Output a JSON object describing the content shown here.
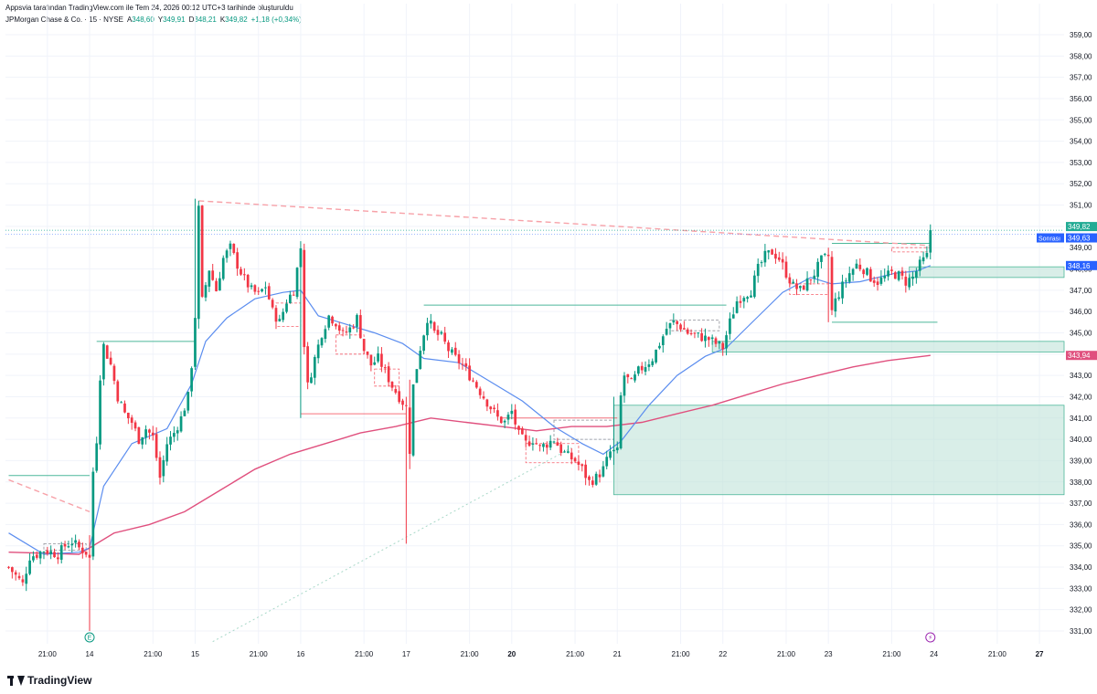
{
  "header": {
    "attribution": "Appsvia tarafından TradingView.com ile Tem 24, 2026 00:12 UTC+3 tarihinde oluşturuldu",
    "symbol": "JPMorgan Chase & Co. · 15 · NYSE",
    "open_label": "A",
    "open_value": "348,60",
    "high_label": "Y",
    "high_value": "349,91",
    "low_label": "D",
    "low_value": "348,21",
    "close_label": "K",
    "close_value": "349,82",
    "change": "+1,18 (+0,34%)"
  },
  "branding": {
    "logo_text": "TradingView"
  },
  "colors": {
    "up": "#089981",
    "down": "#f23645",
    "ma_fast": "#5b8def",
    "ma_slow": "#e0507e",
    "zone_fill": "#bfe3d8",
    "zone_line": "#4db89a",
    "grid": "#f0f3fa",
    "text": "#131722",
    "price_last": "#22ab94",
    "price_prev": "#2962ff",
    "price_ma": "#e0507e"
  },
  "chart_data": {
    "type": "candlestick",
    "title": "",
    "xlabel": "",
    "ylabel": "",
    "ylim": [
      330.4,
      359.6
    ],
    "x_span_bars": 300,
    "grid": true,
    "y_ticks": [
      "331,00",
      "332,00",
      "333,00",
      "334,00",
      "335,00",
      "336,00",
      "337,00",
      "338,00",
      "339,00",
      "340,00",
      "341,00",
      "342,00",
      "343,00",
      "344,00",
      "345,00",
      "346,00",
      "347,00",
      "348,00",
      "349,00",
      "350,00",
      "351,00",
      "352,00",
      "353,00",
      "354,00",
      "355,00",
      "356,00",
      "357,00",
      "358,00",
      "359,00"
    ],
    "y_tick_values": [
      331,
      332,
      333,
      334,
      335,
      336,
      337,
      338,
      339,
      340,
      341,
      342,
      343,
      344,
      345,
      346,
      347,
      348,
      349,
      350,
      351,
      352,
      353,
      354,
      355,
      356,
      357,
      358,
      359
    ],
    "x_ticks": [
      {
        "label": "21:00",
        "bar": 11,
        "bold": false
      },
      {
        "label": "14",
        "bar": 23,
        "bold": false
      },
      {
        "label": "21:00",
        "bar": 41,
        "bold": false
      },
      {
        "label": "15",
        "bar": 53,
        "bold": false
      },
      {
        "label": "21:00",
        "bar": 71,
        "bold": false
      },
      {
        "label": "16",
        "bar": 83,
        "bold": false
      },
      {
        "label": "21:00",
        "bar": 101,
        "bold": false
      },
      {
        "label": "17",
        "bar": 113,
        "bold": false
      },
      {
        "label": "21:00",
        "bar": 131,
        "bold": false
      },
      {
        "label": "20",
        "bar": 143,
        "bold": true
      },
      {
        "label": "21:00",
        "bar": 161,
        "bold": false
      },
      {
        "label": "21",
        "bar": 173,
        "bold": false
      },
      {
        "label": "21:00",
        "bar": 191,
        "bold": false
      },
      {
        "label": "22",
        "bar": 203,
        "bold": false
      },
      {
        "label": "21:00",
        "bar": 221,
        "bold": false
      },
      {
        "label": "23",
        "bar": 233,
        "bold": false
      },
      {
        "label": "21:00",
        "bar": 251,
        "bold": false
      },
      {
        "label": "24",
        "bar": 263,
        "bold": false
      },
      {
        "label": "21:00",
        "bar": 281,
        "bold": false
      },
      {
        "label": "27",
        "bar": 293,
        "bold": true
      }
    ],
    "anchors": [
      [
        0,
        334.0
      ],
      [
        2,
        333.6
      ],
      [
        4,
        333.2
      ],
      [
        6,
        334.5
      ],
      [
        8,
        334.6
      ],
      [
        10,
        334.8
      ],
      [
        12,
        334.7
      ],
      [
        14,
        334.6
      ],
      [
        16,
        335.0
      ],
      [
        18,
        335.2
      ],
      [
        20,
        334.9
      ],
      [
        22,
        334.7
      ],
      [
        23,
        334.4
      ],
      [
        24,
        338.5
      ],
      [
        25,
        340.0
      ],
      [
        26,
        343.0
      ],
      [
        27,
        344.4
      ],
      [
        29,
        343.5
      ],
      [
        31,
        342.0
      ],
      [
        33,
        341.2
      ],
      [
        35,
        340.8
      ],
      [
        37,
        340.0
      ],
      [
        39,
        340.5
      ],
      [
        41,
        340.1
      ],
      [
        43,
        338.2
      ],
      [
        45,
        339.8
      ],
      [
        47,
        340.3
      ],
      [
        49,
        341.0
      ],
      [
        51,
        342.0
      ],
      [
        52,
        343.5
      ],
      [
        53,
        345.8
      ],
      [
        54,
        350.8
      ],
      [
        55,
        346.5
      ],
      [
        57,
        348.0
      ],
      [
        59,
        347.0
      ],
      [
        61,
        348.5
      ],
      [
        63,
        349.0
      ],
      [
        65,
        348.2
      ],
      [
        67,
        347.5
      ],
      [
        69,
        347.0
      ],
      [
        71,
        346.8
      ],
      [
        73,
        347.2
      ],
      [
        75,
        346.0
      ],
      [
        77,
        345.5
      ],
      [
        79,
        346.5
      ],
      [
        81,
        347.0
      ],
      [
        83,
        349.0
      ],
      [
        84,
        344.5
      ],
      [
        85,
        342.5
      ],
      [
        87,
        343.8
      ],
      [
        89,
        345.0
      ],
      [
        91,
        345.8
      ],
      [
        93,
        345.5
      ],
      [
        95,
        344.9
      ],
      [
        97,
        345.2
      ],
      [
        99,
        345.7
      ],
      [
        101,
        344.2
      ],
      [
        103,
        343.5
      ],
      [
        105,
        343.8
      ],
      [
        107,
        343.2
      ],
      [
        109,
        342.5
      ],
      [
        111,
        342.0
      ],
      [
        113,
        341.5
      ],
      [
        114,
        339.5
      ],
      [
        115,
        342.5
      ],
      [
        117,
        344.3
      ],
      [
        119,
        345.7
      ],
      [
        121,
        345.0
      ],
      [
        123,
        344.8
      ],
      [
        125,
        344.2
      ],
      [
        127,
        343.8
      ],
      [
        129,
        343.5
      ],
      [
        131,
        343.0
      ],
      [
        133,
        342.5
      ],
      [
        135,
        342.0
      ],
      [
        137,
        341.5
      ],
      [
        139,
        341.0
      ],
      [
        141,
        340.8
      ],
      [
        143,
        341.3
      ],
      [
        145,
        340.2
      ],
      [
        147,
        339.8
      ],
      [
        149,
        340.0
      ],
      [
        151,
        339.6
      ],
      [
        153,
        339.8
      ],
      [
        155,
        340.0
      ],
      [
        157,
        339.5
      ],
      [
        159,
        339.2
      ],
      [
        161,
        339.0
      ],
      [
        163,
        338.6
      ],
      [
        165,
        338.0
      ],
      [
        167,
        338.2
      ],
      [
        169,
        338.6
      ],
      [
        171,
        339.4
      ],
      [
        173,
        339.4
      ],
      [
        174,
        342.0
      ],
      [
        175,
        343.0
      ],
      [
        177,
        342.6
      ],
      [
        179,
        343.2
      ],
      [
        181,
        343.5
      ],
      [
        183,
        343.8
      ],
      [
        185,
        344.5
      ],
      [
        187,
        345.2
      ],
      [
        189,
        345.5
      ],
      [
        191,
        345.3
      ],
      [
        193,
        345.0
      ],
      [
        195,
        344.9
      ],
      [
        197,
        344.8
      ],
      [
        199,
        344.7
      ],
      [
        201,
        344.5
      ],
      [
        203,
        344.3
      ],
      [
        205,
        345.5
      ],
      [
        207,
        346.5
      ],
      [
        209,
        346.8
      ],
      [
        211,
        347.0
      ],
      [
        213,
        348.0
      ],
      [
        215,
        348.6
      ],
      [
        217,
        348.8
      ],
      [
        219,
        348.5
      ],
      [
        221,
        347.8
      ],
      [
        223,
        347.2
      ],
      [
        225,
        347.0
      ],
      [
        227,
        347.4
      ],
      [
        229,
        347.8
      ],
      [
        231,
        348.4
      ],
      [
        233,
        348.6
      ],
      [
        234,
        346.0
      ],
      [
        235,
        346.5
      ],
      [
        237,
        347.2
      ],
      [
        239,
        347.8
      ],
      [
        241,
        348.2
      ],
      [
        243,
        348.0
      ],
      [
        245,
        347.6
      ],
      [
        247,
        347.4
      ],
      [
        249,
        347.6
      ],
      [
        251,
        347.8
      ],
      [
        253,
        347.7
      ],
      [
        255,
        347.4
      ],
      [
        257,
        347.6
      ],
      [
        259,
        348.2
      ],
      [
        261,
        348.6
      ],
      [
        262,
        349.82
      ]
    ],
    "spikes": [
      {
        "bar": 23,
        "high": 335.5,
        "low": 331.0
      },
      {
        "bar": 53,
        "high": 351.3,
        "low": 344.8
      },
      {
        "bar": 54,
        "high": 351.2,
        "low": 345.2
      },
      {
        "bar": 83,
        "high": 349.3,
        "low": 341.0
      },
      {
        "bar": 113,
        "high": 342.0,
        "low": 335.1
      },
      {
        "bar": 114,
        "high": 342.8,
        "low": 338.6
      },
      {
        "bar": 172,
        "high": 342.0,
        "low": 338.8
      },
      {
        "bar": 233,
        "high": 349.0,
        "low": 345.5
      }
    ],
    "ma_fast": [
      [
        0,
        335.6
      ],
      [
        10,
        334.6
      ],
      [
        20,
        334.7
      ],
      [
        23,
        334.9
      ],
      [
        27,
        337.8
      ],
      [
        35,
        339.8
      ],
      [
        45,
        340.5
      ],
      [
        52,
        342.6
      ],
      [
        56,
        344.6
      ],
      [
        62,
        345.7
      ],
      [
        70,
        346.6
      ],
      [
        78,
        346.9
      ],
      [
        83,
        347.0
      ],
      [
        88,
        345.8
      ],
      [
        96,
        345.4
      ],
      [
        104,
        345.0
      ],
      [
        112,
        344.5
      ],
      [
        118,
        343.8
      ],
      [
        128,
        343.6
      ],
      [
        138,
        342.6
      ],
      [
        146,
        341.8
      ],
      [
        155,
        340.6
      ],
      [
        163,
        339.8
      ],
      [
        169,
        339.3
      ],
      [
        174,
        339.9
      ],
      [
        182,
        341.6
      ],
      [
        190,
        343.0
      ],
      [
        198,
        343.9
      ],
      [
        204,
        344.3
      ],
      [
        212,
        345.6
      ],
      [
        220,
        346.9
      ],
      [
        228,
        347.6
      ],
      [
        234,
        347.3
      ],
      [
        242,
        347.4
      ],
      [
        252,
        347.8
      ],
      [
        258,
        347.9
      ],
      [
        262,
        348.16
      ]
    ],
    "ma_slow": [
      [
        0,
        334.7
      ],
      [
        20,
        334.6
      ],
      [
        30,
        335.6
      ],
      [
        40,
        336.0
      ],
      [
        50,
        336.6
      ],
      [
        60,
        337.6
      ],
      [
        70,
        338.6
      ],
      [
        80,
        339.3
      ],
      [
        90,
        339.8
      ],
      [
        100,
        340.3
      ],
      [
        110,
        340.6
      ],
      [
        120,
        341.0
      ],
      [
        130,
        340.8
      ],
      [
        140,
        340.6
      ],
      [
        150,
        340.4
      ],
      [
        160,
        340.6
      ],
      [
        170,
        340.6
      ],
      [
        180,
        340.8
      ],
      [
        190,
        341.2
      ],
      [
        200,
        341.6
      ],
      [
        210,
        342.1
      ],
      [
        220,
        342.6
      ],
      [
        230,
        343.0
      ],
      [
        240,
        343.4
      ],
      [
        250,
        343.7
      ],
      [
        262,
        343.94
      ]
    ],
    "zones": [
      {
        "x0": 172,
        "x1": 300,
        "y0": 337.4,
        "y1": 341.6
      },
      {
        "x0": 200,
        "x1": 300,
        "y0": 344.1,
        "y1": 344.6
      },
      {
        "x0": 256,
        "x1": 300,
        "y0": 347.6,
        "y1": 348.1
      }
    ],
    "levels_up": [
      {
        "x0": 0,
        "x1": 23,
        "y": 338.3
      },
      {
        "x0": 25,
        "x1": 53,
        "y": 344.6
      },
      {
        "x0": 118,
        "x1": 204,
        "y": 346.3
      },
      {
        "x0": 234,
        "x1": 262,
        "y": 349.2
      },
      {
        "x0": 234,
        "x1": 264,
        "y": 345.5
      }
    ],
    "levels_down": [
      {
        "x0": 83,
        "x1": 113,
        "y": 341.2
      },
      {
        "x0": 140,
        "x1": 173,
        "y": 341.0
      }
    ],
    "dashed_boxes_down": [
      {
        "x0": 76,
        "x1": 83,
        "y0": 345.3,
        "y1": 346.4
      },
      {
        "x0": 93,
        "x1": 101,
        "y0": 344.0,
        "y1": 344.9
      },
      {
        "x0": 104,
        "x1": 111,
        "y0": 342.5,
        "y1": 343.3
      },
      {
        "x0": 147,
        "x1": 162,
        "y0": 338.9,
        "y1": 339.8
      },
      {
        "x0": 222,
        "x1": 233,
        "y0": 346.8,
        "y1": 347.3
      },
      {
        "x0": 251,
        "x1": 262,
        "y0": 348.8,
        "y1": 349.0
      }
    ],
    "dashed_boxes_up": [
      {
        "x0": 10,
        "x1": 22,
        "y0": 334.8,
        "y1": 335.1
      },
      {
        "x0": 155,
        "x1": 172,
        "y0": 340.0,
        "y1": 340.9
      },
      {
        "x0": 188,
        "x1": 202,
        "y0": 345.1,
        "y1": 345.6
      }
    ],
    "trend_down": {
      "x0": 54,
      "x1": 262,
      "y0": 351.2,
      "y1": 349.1
    },
    "trend_down_short": {
      "x0": 0,
      "x1": 23,
      "y0": 338.1,
      "y1": 336.6
    },
    "trend_up_dotted": {
      "x0": 58,
      "x1": 160,
      "y0": 330.5,
      "y1": 339.6
    },
    "last_price": 349.82,
    "prev_close": 349.63,
    "price_labels": [
      {
        "text": "349,82",
        "value": 349.82,
        "color": "#22ab94"
      },
      {
        "text": "349,63",
        "value": 349.63,
        "color": "#2962ff"
      },
      {
        "text": "348,16",
        "value": 348.16,
        "color": "#2962ff"
      },
      {
        "text": "343,94",
        "value": 343.94,
        "color": "#e0507e"
      }
    ],
    "post_market_label": "Sonrası",
    "earnings_marker": {
      "bar": 23,
      "text": "E"
    },
    "flash_marker": {
      "bar": 262,
      "text": "⚡"
    }
  }
}
